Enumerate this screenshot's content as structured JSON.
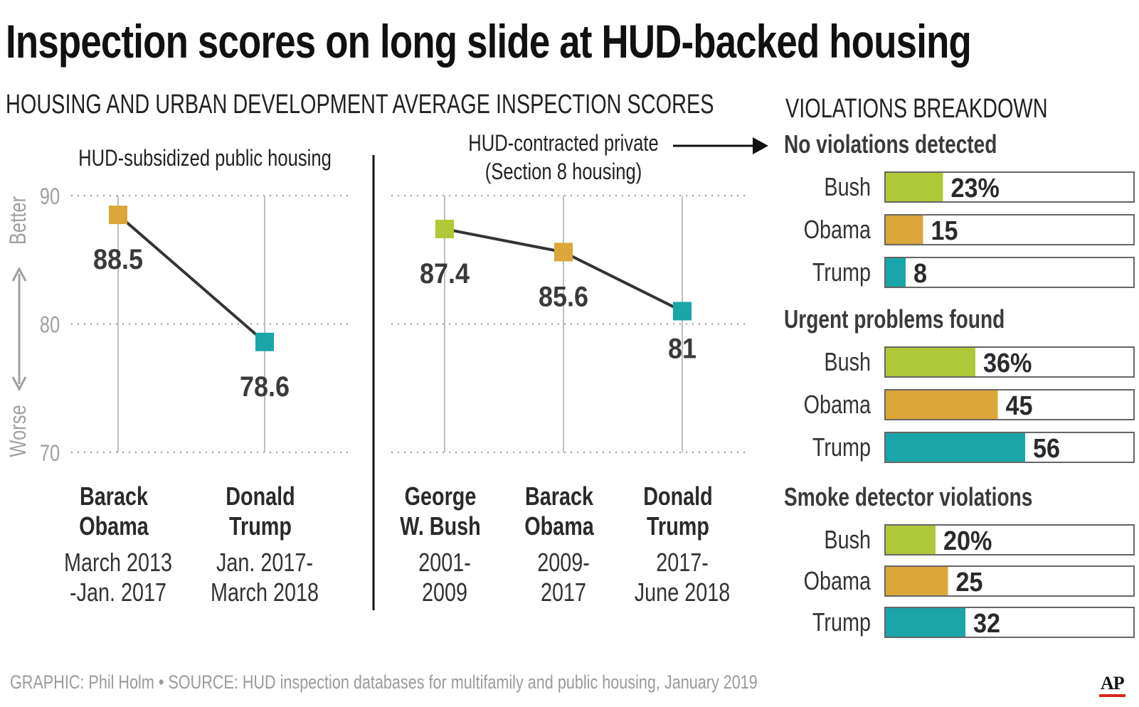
{
  "title": "Inspection scores on long slide at HUD-backed housing",
  "subtitle": "HOUSING AND URBAN DEVELOPMENT AVERAGE INSPECTION SCORES",
  "breakdown_title": "VIOLATIONS BREAKDOWN",
  "source": "GRAPHIC: Phil Holm • SOURCE: HUD inspection databases for multifamily and public housing, January 2019",
  "logo_text": "AP",
  "colors": {
    "bush": "#afc837",
    "obama": "#dba63a",
    "trump": "#1aa5a8",
    "line": "#333333",
    "grid": "#9a9a9a",
    "axis_text": "#a0a0a0"
  },
  "chart_data": [
    {
      "type": "line",
      "title": "HUD-subsidized public housing",
      "ylim": [
        70,
        90
      ],
      "yticks": [
        90,
        80,
        70
      ],
      "axis_better": "Better",
      "axis_worse": "Worse",
      "points": [
        {
          "president": [
            "Barack",
            "Obama"
          ],
          "period": [
            "March 2013",
            "-Jan. 2017"
          ],
          "value": 88.5,
          "label": "88.5",
          "color_key": "obama"
        },
        {
          "president": [
            "Donald",
            "Trump"
          ],
          "period": [
            "Jan. 2017-",
            "March 2018"
          ],
          "value": 78.6,
          "label": "78.6",
          "color_key": "trump"
        }
      ]
    },
    {
      "type": "line",
      "title": [
        "HUD-contracted private",
        "(Section 8 housing)"
      ],
      "ylim": [
        70,
        90
      ],
      "points": [
        {
          "president": [
            "George",
            "W. Bush"
          ],
          "period": [
            "2001-",
            "2009"
          ],
          "value": 87.4,
          "label": "87.4",
          "color_key": "bush"
        },
        {
          "president": [
            "Barack",
            "Obama"
          ],
          "period": [
            "2009-",
            "2017"
          ],
          "value": 85.6,
          "label": "85.6",
          "color_key": "obama"
        },
        {
          "president": [
            "Donald",
            "Trump"
          ],
          "period": [
            "2017-",
            "June 2018"
          ],
          "value": 81,
          "label": "81",
          "color_key": "trump"
        }
      ]
    },
    {
      "type": "bar",
      "title": "VIOLATIONS BREAKDOWN",
      "xlim": [
        0,
        100
      ],
      "groups": [
        {
          "title": "No violations detected",
          "categories": [
            "Bush",
            "Obama",
            "Trump"
          ],
          "values": [
            23,
            15,
            8
          ],
          "labels": [
            "23%",
            "15",
            "8"
          ],
          "color_keys": [
            "bush",
            "obama",
            "trump"
          ]
        },
        {
          "title": "Urgent problems found",
          "categories": [
            "Bush",
            "Obama",
            "Trump"
          ],
          "values": [
            36,
            45,
            56
          ],
          "labels": [
            "36%",
            "45",
            "56"
          ],
          "color_keys": [
            "bush",
            "obama",
            "trump"
          ]
        },
        {
          "title": "Smoke detector violations",
          "categories": [
            "Bush",
            "Obama",
            "Trump"
          ],
          "values": [
            20,
            25,
            32
          ],
          "labels": [
            "20%",
            "25",
            "32"
          ],
          "color_keys": [
            "bush",
            "obama",
            "trump"
          ]
        }
      ]
    }
  ]
}
